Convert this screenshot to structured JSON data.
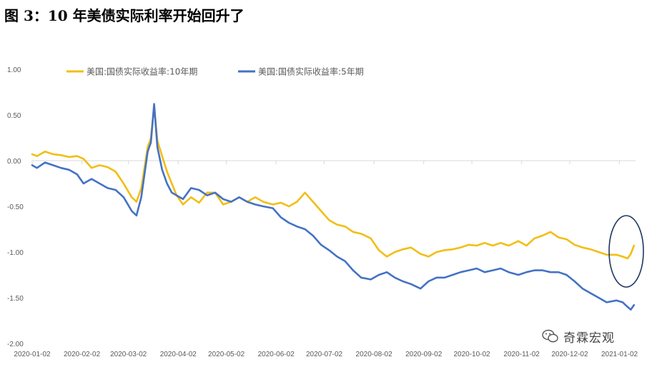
{
  "page_title": "图 3：10 年美债实际利率开始回升了",
  "watermark": "奇霖宏观",
  "colors": {
    "series_10y": "#F2BE14",
    "series_5y": "#4472C4",
    "axis": "#D9D9D9",
    "tick_text": "#595959",
    "highlight": "#203864"
  },
  "chart_data": {
    "type": "line",
    "x_is_dates": true,
    "x_range": [
      "2020-01-02",
      "2021-01-12"
    ],
    "ylim": [
      -2.0,
      1.0
    ],
    "yticks": [
      1.0,
      0.5,
      0.0,
      -0.5,
      -1.0,
      -1.5,
      -2.0
    ],
    "ytick_labels": [
      "1.00",
      "0.50",
      "0.00",
      "-0.50",
      "-1.00",
      "-1.50",
      "-2.00"
    ],
    "xtick_labels": [
      "2020-01-02",
      "2020-02-02",
      "2020-03-02",
      "2020-04-02",
      "2020-05-02",
      "2020-06-02",
      "2020-07-02",
      "2020-08-02",
      "2020-09-02",
      "2020-10-02",
      "2020-11-02",
      "2020-12-02",
      "2021-01-02"
    ],
    "legend_position": "top",
    "highlight": "ellipse around the most recent values (late Dec 2020 – Jan 2021)",
    "series": [
      {
        "name": "美国:国债实际收益率:10年期",
        "color": "#F2BE14",
        "x": [
          "2020-01-02",
          "2020-01-05",
          "2020-01-10",
          "2020-01-15",
          "2020-01-20",
          "2020-01-25",
          "2020-01-30",
          "2020-02-03",
          "2020-02-08",
          "2020-02-13",
          "2020-02-18",
          "2020-02-23",
          "2020-02-28",
          "2020-03-04",
          "2020-03-07",
          "2020-03-10",
          "2020-03-14",
          "2020-03-16",
          "2020-03-18",
          "2020-03-20",
          "2020-03-23",
          "2020-03-26",
          "2020-03-29",
          "2020-04-01",
          "2020-04-05",
          "2020-04-10",
          "2020-04-15",
          "2020-04-20",
          "2020-04-25",
          "2020-04-30",
          "2020-05-05",
          "2020-05-10",
          "2020-05-15",
          "2020-05-20",
          "2020-05-25",
          "2020-05-31",
          "2020-06-05",
          "2020-06-10",
          "2020-06-15",
          "2020-06-20",
          "2020-06-25",
          "2020-06-30",
          "2020-07-05",
          "2020-07-10",
          "2020-07-15",
          "2020-07-20",
          "2020-07-25",
          "2020-07-31",
          "2020-08-05",
          "2020-08-10",
          "2020-08-15",
          "2020-08-20",
          "2020-08-25",
          "2020-08-31",
          "2020-09-05",
          "2020-09-10",
          "2020-09-15",
          "2020-09-20",
          "2020-09-25",
          "2020-09-30",
          "2020-10-05",
          "2020-10-10",
          "2020-10-15",
          "2020-10-20",
          "2020-10-25",
          "2020-10-31",
          "2020-11-05",
          "2020-11-10",
          "2020-11-15",
          "2020-11-20",
          "2020-11-25",
          "2020-11-30",
          "2020-12-05",
          "2020-12-10",
          "2020-12-15",
          "2020-12-20",
          "2020-12-25",
          "2020-12-31",
          "2021-01-04",
          "2021-01-07",
          "2021-01-09",
          "2021-01-11"
        ],
        "y": [
          0.07,
          0.05,
          0.1,
          0.07,
          0.06,
          0.04,
          0.05,
          0.02,
          -0.08,
          -0.05,
          -0.07,
          -0.12,
          -0.25,
          -0.4,
          -0.45,
          -0.3,
          0.15,
          0.25,
          0.6,
          0.22,
          0.05,
          -0.12,
          -0.25,
          -0.38,
          -0.48,
          -0.4,
          -0.46,
          -0.35,
          -0.35,
          -0.48,
          -0.45,
          -0.4,
          -0.45,
          -0.4,
          -0.45,
          -0.48,
          -0.46,
          -0.5,
          -0.45,
          -0.35,
          -0.45,
          -0.55,
          -0.65,
          -0.7,
          -0.72,
          -0.78,
          -0.8,
          -0.85,
          -0.98,
          -1.05,
          -1.0,
          -0.97,
          -0.95,
          -1.02,
          -1.05,
          -1.0,
          -0.98,
          -0.97,
          -0.95,
          -0.92,
          -0.93,
          -0.9,
          -0.93,
          -0.9,
          -0.93,
          -0.88,
          -0.93,
          -0.85,
          -0.82,
          -0.78,
          -0.84,
          -0.86,
          -0.92,
          -0.95,
          -0.97,
          -1.0,
          -1.03,
          -1.03,
          -1.05,
          -1.07,
          -1.02,
          -0.93
        ]
      },
      {
        "name": "美国:国债实际收益率:5年期",
        "color": "#4472C4",
        "x": [
          "2020-01-02",
          "2020-01-05",
          "2020-01-10",
          "2020-01-15",
          "2020-01-20",
          "2020-01-25",
          "2020-01-30",
          "2020-02-03",
          "2020-02-08",
          "2020-02-13",
          "2020-02-18",
          "2020-02-23",
          "2020-02-28",
          "2020-03-04",
          "2020-03-07",
          "2020-03-10",
          "2020-03-14",
          "2020-03-16",
          "2020-03-18",
          "2020-03-20",
          "2020-03-23",
          "2020-03-26",
          "2020-03-29",
          "2020-04-01",
          "2020-04-05",
          "2020-04-10",
          "2020-04-15",
          "2020-04-20",
          "2020-04-25",
          "2020-04-30",
          "2020-05-05",
          "2020-05-10",
          "2020-05-15",
          "2020-05-20",
          "2020-05-25",
          "2020-05-31",
          "2020-06-05",
          "2020-06-10",
          "2020-06-15",
          "2020-06-20",
          "2020-06-25",
          "2020-06-30",
          "2020-07-05",
          "2020-07-10",
          "2020-07-15",
          "2020-07-20",
          "2020-07-25",
          "2020-07-31",
          "2020-08-05",
          "2020-08-10",
          "2020-08-15",
          "2020-08-20",
          "2020-08-25",
          "2020-08-31",
          "2020-09-05",
          "2020-09-10",
          "2020-09-15",
          "2020-09-20",
          "2020-09-25",
          "2020-09-30",
          "2020-10-05",
          "2020-10-10",
          "2020-10-15",
          "2020-10-20",
          "2020-10-25",
          "2020-10-31",
          "2020-11-05",
          "2020-11-10",
          "2020-11-15",
          "2020-11-20",
          "2020-11-25",
          "2020-11-30",
          "2020-12-05",
          "2020-12-10",
          "2020-12-15",
          "2020-12-20",
          "2020-12-25",
          "2020-12-31",
          "2021-01-04",
          "2021-01-07",
          "2021-01-09",
          "2021-01-11"
        ],
        "y": [
          -0.05,
          -0.08,
          -0.02,
          -0.05,
          -0.08,
          -0.1,
          -0.15,
          -0.25,
          -0.2,
          -0.25,
          -0.3,
          -0.32,
          -0.4,
          -0.55,
          -0.6,
          -0.4,
          0.1,
          0.2,
          0.62,
          0.15,
          -0.1,
          -0.25,
          -0.35,
          -0.38,
          -0.42,
          -0.3,
          -0.32,
          -0.38,
          -0.35,
          -0.42,
          -0.45,
          -0.4,
          -0.45,
          -0.48,
          -0.5,
          -0.52,
          -0.62,
          -0.68,
          -0.72,
          -0.75,
          -0.82,
          -0.92,
          -0.98,
          -1.05,
          -1.1,
          -1.2,
          -1.28,
          -1.3,
          -1.25,
          -1.22,
          -1.28,
          -1.32,
          -1.35,
          -1.4,
          -1.32,
          -1.28,
          -1.28,
          -1.25,
          -1.22,
          -1.2,
          -1.18,
          -1.22,
          -1.2,
          -1.18,
          -1.22,
          -1.25,
          -1.22,
          -1.2,
          -1.2,
          -1.22,
          -1.22,
          -1.25,
          -1.32,
          -1.4,
          -1.45,
          -1.5,
          -1.55,
          -1.53,
          -1.55,
          -1.6,
          -1.63,
          -1.58
        ]
      }
    ]
  }
}
